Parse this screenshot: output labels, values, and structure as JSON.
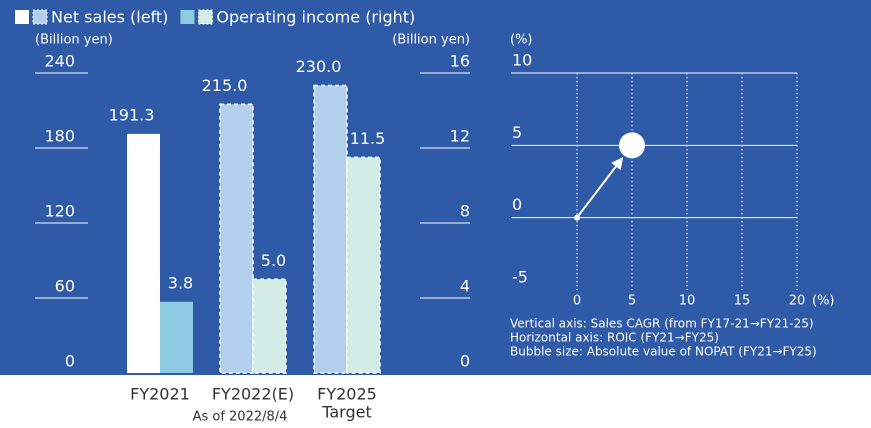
{
  "chart_data": [
    {
      "type": "bar",
      "categories": [
        "FY2021",
        "FY2022(E)",
        "FY2025"
      ],
      "category_notes": [
        null,
        "As of 2022/8/4",
        "Target"
      ],
      "y_label": "(Billion yen)",
      "y2_label": "(Billion yen)",
      "ylim": [
        0,
        240
      ],
      "yticks": [
        0,
        60,
        120,
        180,
        240
      ],
      "y2lim": [
        0,
        16
      ],
      "y2ticks": [
        0,
        4,
        8,
        12,
        16
      ],
      "dashed": [
        false,
        true,
        true
      ],
      "series": [
        {
          "name": "Net sales (left)",
          "color": "#ffffff",
          "forecast_color": "#b3cfee",
          "values": [
            191.3,
            215,
            230
          ],
          "value_labels": [
            "191.3",
            "215.0",
            "230.0"
          ]
        },
        {
          "name": "Operating income (right)",
          "color": "#8ecbe3",
          "forecast_color": "#d4ece6",
          "axis": "y2",
          "values": [
            3.8,
            5,
            11.5
          ],
          "value_labels": [
            "3.8",
            "5.0",
            "11.5"
          ]
        }
      ]
    },
    {
      "type": "scatter",
      "y_label": "(%)",
      "x_label": "(%)",
      "xlim": [
        -6,
        20
      ],
      "xticks": [
        0,
        5,
        10,
        15,
        20
      ],
      "ylim": [
        -5,
        10
      ],
      "yticks": [
        -5,
        0,
        5,
        10
      ],
      "series": [
        {
          "color": "#ffffff",
          "x": [
            0,
            5
          ],
          "values": [
            0,
            5
          ],
          "sizes": [
            3,
            13
          ]
        }
      ],
      "notes": [
        "Vertical axis: Sales CAGR (from FY17-21→FY21-25)",
        "Horizontal axis: ROIC (FY21→FY25)",
        "Bubble size: Absolute value of NOPAT (FY21→FY25)"
      ]
    }
  ]
}
